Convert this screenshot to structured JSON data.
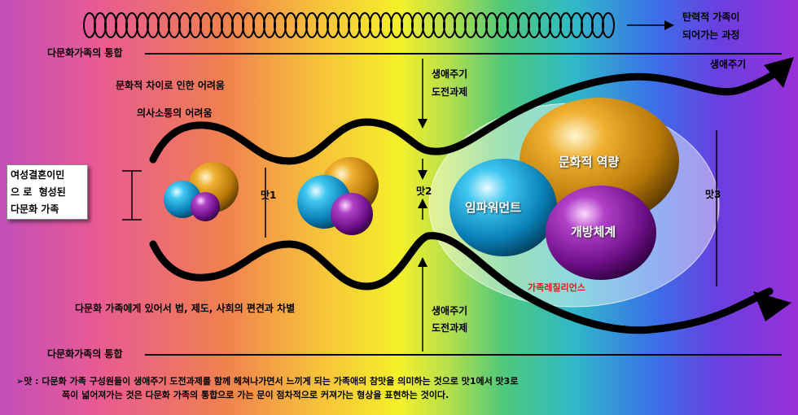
{
  "header_right": {
    "line1": "탄력적 가족이",
    "line2": "되어가는 과정"
  },
  "integration_top": "다문화가족의 통합",
  "integration_bottom": "다문화가족의 통합",
  "difficulties": {
    "cultural": "문화적 차이로 인한 어려움",
    "communication": "의사소통의 어려움",
    "institutional": "다문화 가족에게 있어서 법, 제도, 사회의 편견과 차별"
  },
  "challenge_top": {
    "line1": "생애주기",
    "line2": "도전과제"
  },
  "challenge_bottom": {
    "line1": "생애주기",
    "line2": "도전과제"
  },
  "life_cycle": "생애주기",
  "family_box": {
    "line1": "여성결혼이민",
    "line2": "으 로  형성된",
    "line3": "다문화 가족"
  },
  "taste_labels": {
    "t1": "맛1",
    "t2": "맛2",
    "t3": "맛3"
  },
  "spheres": {
    "cultural_competence": "문화적 역량",
    "empowerment": "임파워먼트",
    "open_system": "개방체계"
  },
  "resilience": "가족레질리언스",
  "footnote": {
    "line1": "➢맛 : 다문화 가족 구성원들이 생애주기 도전과제를 함께 헤쳐나가면서 느끼게 되는 가족애의 참맛을 의미하는 것으로 맛1에서 맛3로",
    "line2": "폭이 넓어져가는 것은 다문화 가족의 통합으로 가는 문이 점차적으로 커져가는 형상을 표현하는 것이다."
  },
  "colors": {
    "gold": "#d89a10",
    "cyan": "#1aa6d8",
    "purple": "#8a1aa8",
    "resilience_text": "#e01818"
  }
}
